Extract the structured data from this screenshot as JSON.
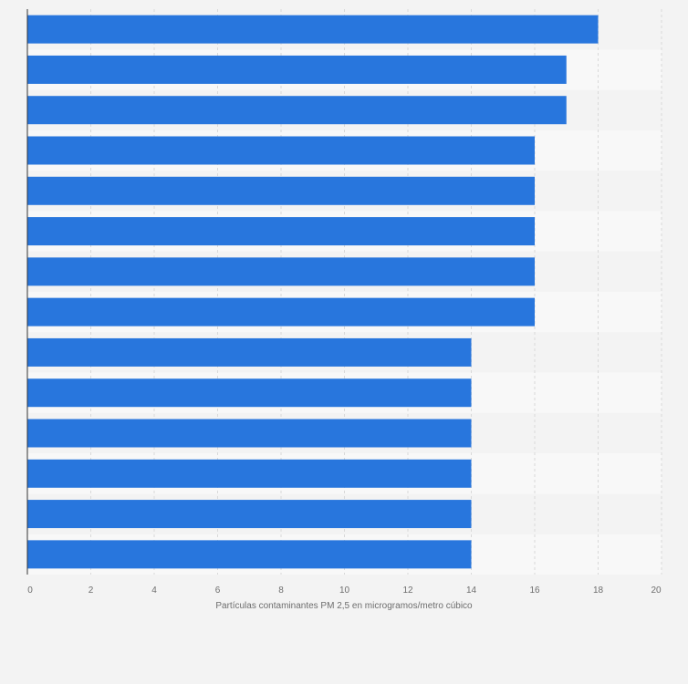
{
  "chart_data": {
    "type": "bar",
    "orientation": "horizontal",
    "categories": [
      "",
      "",
      "",
      "",
      "",
      "",
      "",
      "",
      "",
      "",
      "",
      "",
      "",
      ""
    ],
    "values": [
      18,
      17,
      17,
      16,
      16,
      16,
      16,
      16,
      14,
      14,
      14,
      14,
      14,
      14
    ],
    "xlabel": "Partículas contaminantes PM 2,5 en microgramos/metro cúbico",
    "xlim": [
      0,
      20
    ],
    "xticks": [
      "0",
      "2",
      "4",
      "6",
      "8",
      "10",
      "12",
      "14",
      "16",
      "18",
      "20"
    ],
    "grid": true,
    "colors": {
      "bar": "#2876dd",
      "band_a": "#f3f3f3",
      "band_b": "#f8f8f8",
      "grid": "#d9d9d9",
      "axis": "#333333",
      "background": "#f3f3f3"
    }
  }
}
